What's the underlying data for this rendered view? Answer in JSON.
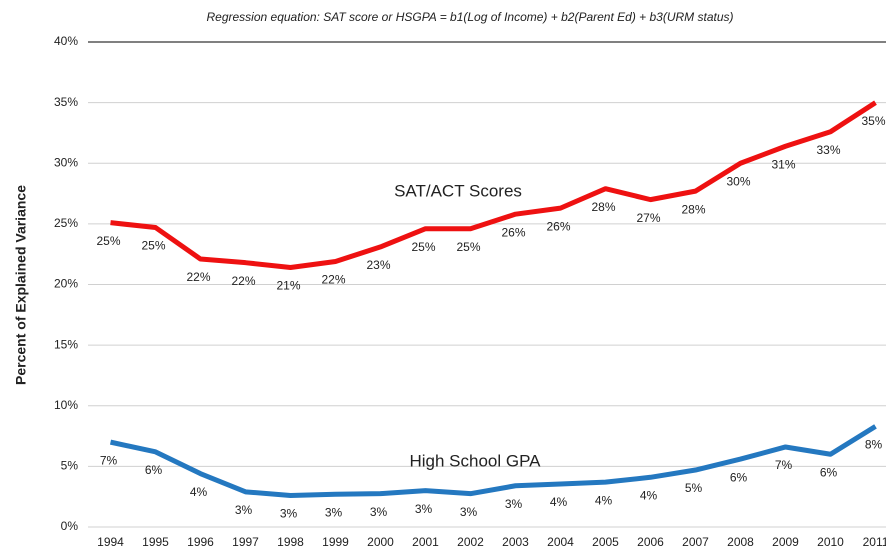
{
  "chart_data": {
    "type": "line",
    "title": "Regression equation:  SAT score or HSGPA = b1(Log of Income) + b2(Parent Ed) + b3(URM status)",
    "y_label": "Percent of Explained Variance",
    "categories": [
      "1994",
      "1995",
      "1996",
      "1997",
      "1998",
      "1999",
      "2000",
      "2001",
      "2002",
      "2003",
      "2004",
      "2005",
      "2006",
      "2007",
      "2008",
      "2009",
      "2010",
      "2011"
    ],
    "series": [
      {
        "name": "SAT/ACT Scores",
        "color": "#ee1111",
        "values": [
          25.1,
          24.7,
          22.1,
          21.8,
          21.4,
          21.9,
          23.1,
          24.6,
          24.6,
          25.8,
          26.3,
          27.9,
          27.0,
          27.7,
          30.0,
          31.4,
          32.6,
          35.0
        ],
        "value_labels": [
          "25%",
          "25%",
          "22%",
          "22%",
          "21%",
          "22%",
          "23%",
          "25%",
          "25%",
          "26%",
          "26%",
          "28%",
          "27%",
          "28%",
          "30%",
          "31%",
          "33%",
          "35%"
        ]
      },
      {
        "name": "High School GPA",
        "color": "#2478c0",
        "values": [
          7.0,
          6.2,
          4.4,
          2.9,
          2.6,
          2.7,
          2.75,
          3.0,
          2.75,
          3.4,
          3.55,
          3.7,
          4.1,
          4.7,
          5.6,
          6.6,
          6.0,
          8.3
        ],
        "value_labels": [
          "7%",
          "6%",
          "4%",
          "3%",
          "3%",
          "3%",
          "3%",
          "3%",
          "3%",
          "3%",
          "4%",
          "4%",
          "4%",
          "5%",
          "6%",
          "7%",
          "6%",
          "8%"
        ]
      }
    ],
    "ylim": [
      0,
      40
    ],
    "yticks": [
      {
        "value": 0,
        "label": "0%"
      },
      {
        "value": 5,
        "label": "5%"
      },
      {
        "value": 10,
        "label": "10%"
      },
      {
        "value": 15,
        "label": "15%"
      },
      {
        "value": 20,
        "label": "20%"
      },
      {
        "value": 25,
        "label": "25%"
      },
      {
        "value": 30,
        "label": "30%"
      },
      {
        "value": 35,
        "label": "35%"
      },
      {
        "value": 40,
        "label": "40%"
      }
    ],
    "grid": true
  }
}
